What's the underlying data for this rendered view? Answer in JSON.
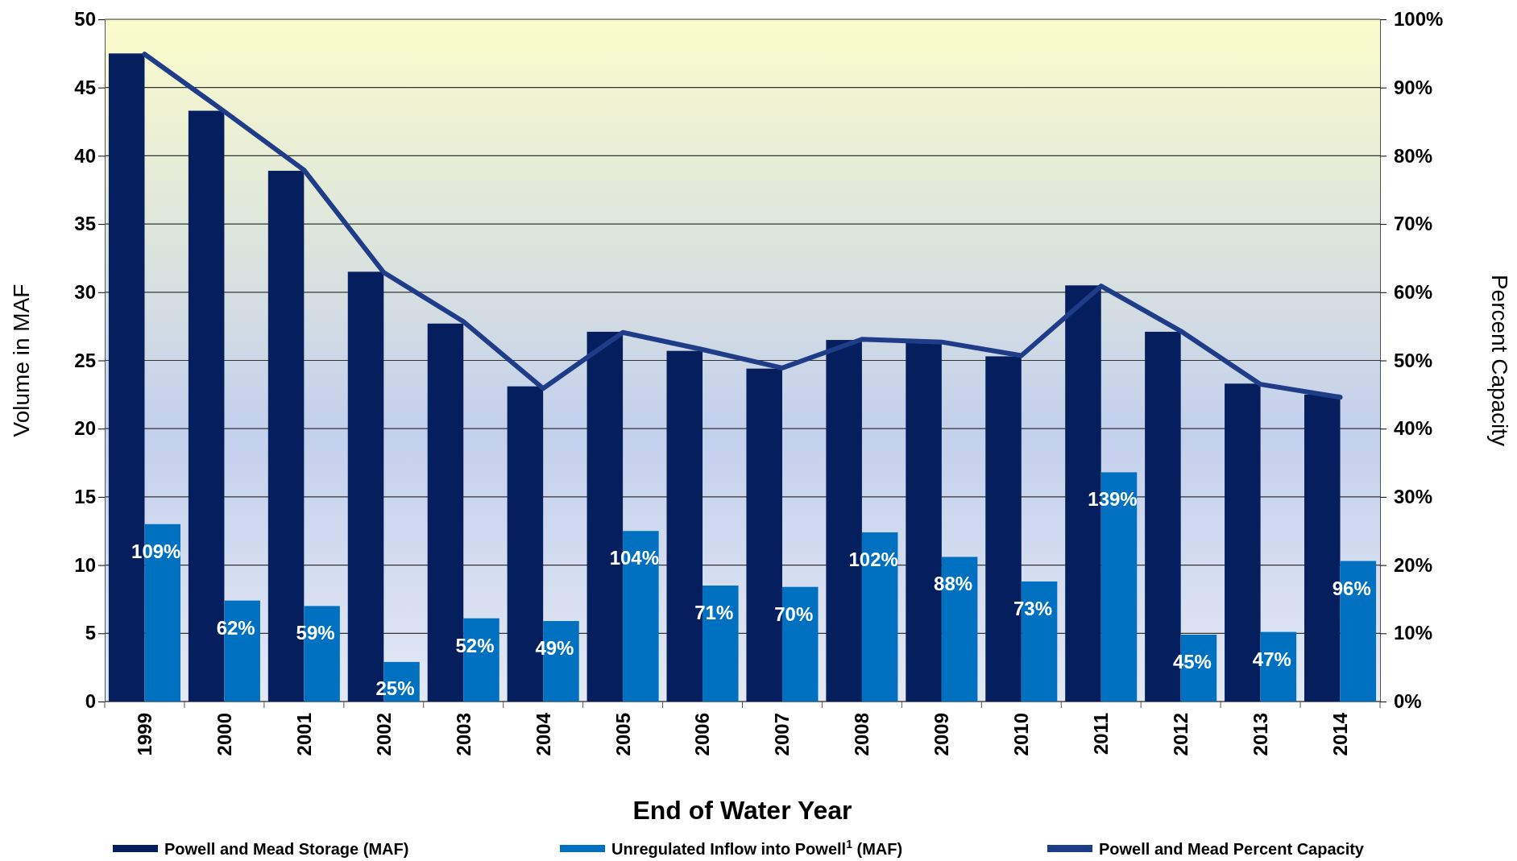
{
  "chart_data": {
    "type": "bar",
    "xlabel": "End of Water Year",
    "ylabel": "Volume in MAF",
    "y2label": "Percent Capacity",
    "categories": [
      "1999",
      "2000",
      "2001",
      "2002",
      "2003",
      "2004",
      "2005",
      "2006",
      "2007",
      "2008",
      "2009",
      "2010",
      "2011",
      "2012",
      "2013",
      "2014"
    ],
    "series": [
      {
        "name": "Powell and Mead Storage (MAF)",
        "color": "#041e5e",
        "values": [
          47.5,
          43.3,
          38.9,
          31.5,
          27.7,
          23.1,
          27.1,
          25.7,
          24.4,
          26.5,
          26.4,
          25.3,
          30.5,
          27.1,
          23.3,
          22.5
        ]
      },
      {
        "name": "Unregulated Inflow into Powell$^{1}$ (MAF)",
        "color": "#0070c0",
        "values": [
          13.0,
          7.4,
          7.0,
          2.9,
          6.1,
          5.9,
          12.5,
          8.5,
          8.4,
          12.4,
          10.6,
          8.8,
          16.8,
          4.9,
          5.1,
          10.3
        ]
      },
      {
        "name": "Powell and Mead Percent Capacity",
        "color": "#1f3c88",
        "type": "line",
        "axis": "y2",
        "values": [
          94.9,
          86.5,
          77.9,
          62.9,
          55.7,
          45.9,
          54.1,
          51.6,
          48.9,
          53.1,
          52.7,
          50.7,
          60.9,
          54.3,
          46.5,
          44.6
        ]
      }
    ],
    "ylim": [
      0,
      50
    ],
    "yticks": [
      0,
      5,
      10,
      15,
      20,
      25,
      30,
      35,
      40,
      45,
      50
    ],
    "y2lim": [
      0,
      100
    ],
    "y2ticks": [
      {
        "value": 0,
        "label": "0%"
      },
      {
        "value": 10,
        "label": "10%"
      },
      {
        "value": 20,
        "label": "20%"
      },
      {
        "value": 30,
        "label": "30%"
      },
      {
        "value": 40,
        "label": "40%"
      },
      {
        "value": 50,
        "label": "50%"
      },
      {
        "value": 60,
        "label": "60%"
      },
      {
        "value": 70,
        "label": "70%"
      },
      {
        "value": 80,
        "label": "80%"
      },
      {
        "value": 90,
        "label": "90%"
      },
      {
        "value": 100,
        "label": "100%"
      }
    ],
    "annotations": [
      {
        "text": "109%",
        "x": "1999",
        "y": 13.0
      },
      {
        "text": "62%",
        "x": "2000",
        "y": 7.4
      },
      {
        "text": "59%",
        "x": "2001",
        "y": 7.0
      },
      {
        "text": "25%",
        "x": "2002",
        "y": 2.9
      },
      {
        "text": "52%",
        "x": "2003",
        "y": 6.1
      },
      {
        "text": "49%",
        "x": "2004",
        "y": 5.9
      },
      {
        "text": "104%",
        "x": "2005",
        "y": 12.5
      },
      {
        "text": "71%",
        "x": "2006",
        "y": 8.5
      },
      {
        "text": "70%",
        "x": "2007",
        "y": 8.4
      },
      {
        "text": "102%",
        "x": "2008",
        "y": 12.4
      },
      {
        "text": "88%",
        "x": "2009",
        "y": 10.6
      },
      {
        "text": "73%",
        "x": "2010",
        "y": 8.8
      },
      {
        "text": "139%",
        "x": "2011",
        "y": 16.8
      },
      {
        "text": "45%",
        "x": "2012",
        "y": 4.9
      },
      {
        "text": "47%",
        "x": "2013",
        "y": 5.1
      },
      {
        "text": "96%",
        "x": "2014",
        "y": 10.3
      }
    ],
    "grid": "y",
    "legend": "bottom",
    "marker": "none",
    "line_style": "solid"
  }
}
